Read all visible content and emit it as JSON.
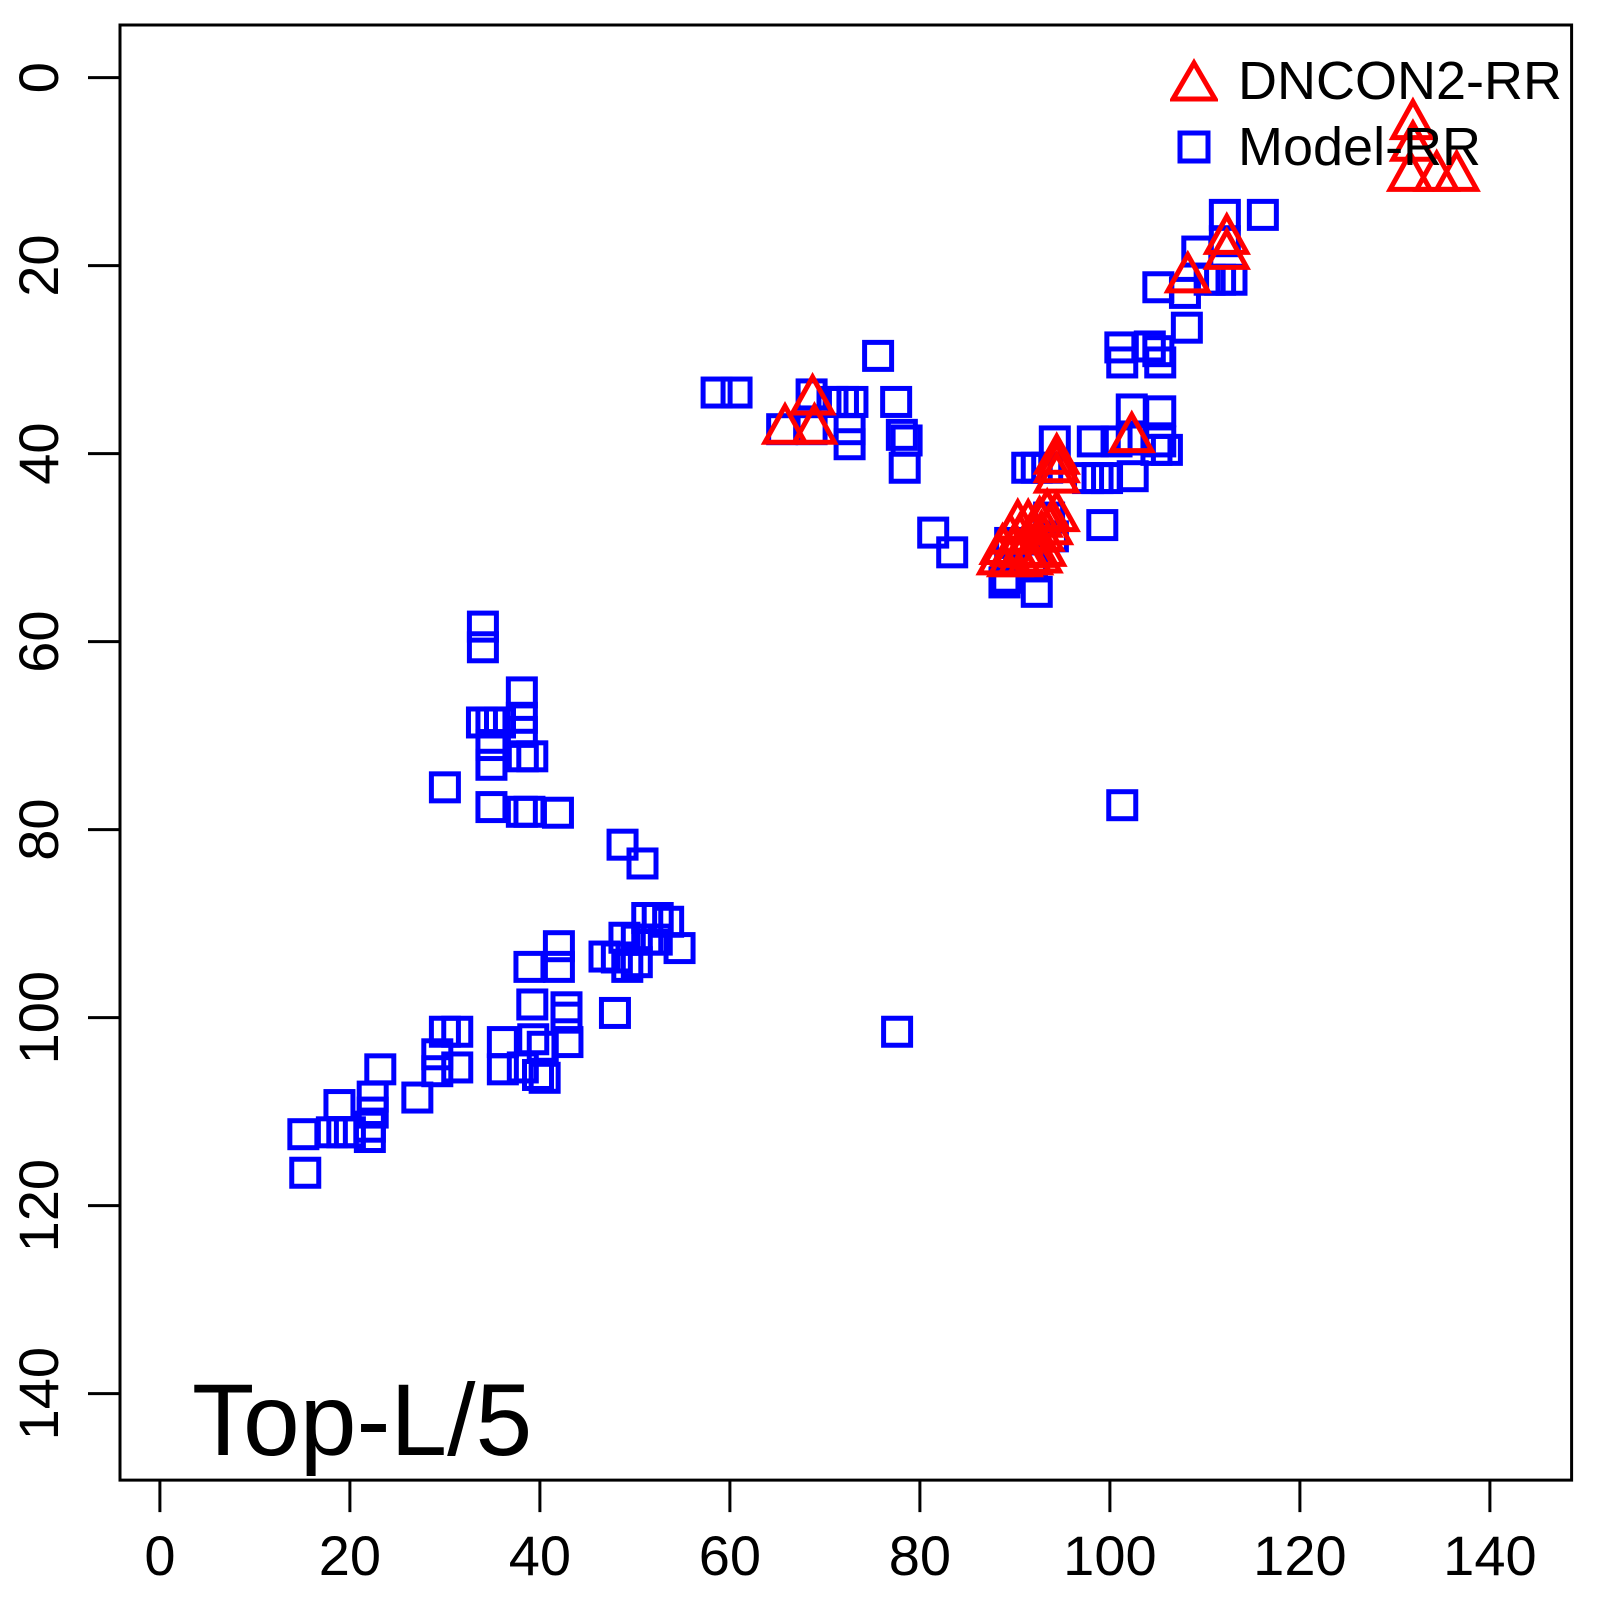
{
  "chart_data": {
    "type": "scatter",
    "title": "Top-L/5",
    "background": "#FFFFFF",
    "axes": {
      "x_ticks": [
        0,
        20,
        40,
        60,
        80,
        100,
        120,
        140
      ],
      "y_ticks": [
        0,
        20,
        40,
        60,
        80,
        100,
        120,
        140
      ],
      "x_range": [
        -4.2,
        148.6
      ],
      "y_range": [
        -5.6,
        149.2
      ],
      "y_reversed": true,
      "grid": false,
      "axis_color": "#000000"
    },
    "legend": {
      "position": "top-right",
      "items": [
        {
          "label": "DNCON2-RR",
          "marker": "triangle",
          "color": "#FF0000"
        },
        {
          "label": "Model-RR",
          "marker": "square",
          "color": "#0000FF"
        }
      ]
    },
    "series": [
      {
        "name": "DNCON2-RR",
        "marker": "triangle",
        "color": "#FF0000",
        "points": [
          [
            131.9,
            5.0
          ],
          [
            131.9,
            7.3
          ],
          [
            131.6,
            10.5
          ],
          [
            134.4,
            10.5
          ],
          [
            136.5,
            10.5
          ],
          [
            112.3,
            17.2
          ],
          [
            112.3,
            18.8
          ],
          [
            108.2,
            21.3
          ],
          [
            68.7,
            34.3
          ],
          [
            65.8,
            37.4
          ],
          [
            68.9,
            37.4
          ],
          [
            102.3,
            38.3
          ],
          [
            94.4,
            40.6
          ],
          [
            94.4,
            41.5
          ],
          [
            94.4,
            42.6
          ],
          [
            94.4,
            46.7
          ],
          [
            93.4,
            46.5
          ],
          [
            92.6,
            47.3
          ],
          [
            93.7,
            48.1
          ],
          [
            91.4,
            47.6
          ],
          [
            90.3,
            47.6
          ],
          [
            92.8,
            48.8
          ],
          [
            91.8,
            48.9
          ],
          [
            90.5,
            49.1
          ],
          [
            89.5,
            49.1
          ],
          [
            93.0,
            50.4
          ],
          [
            91.9,
            50.5
          ],
          [
            90.8,
            50.5
          ],
          [
            89.8,
            50.4
          ],
          [
            88.7,
            50.2
          ],
          [
            92.6,
            51.1
          ],
          [
            91.6,
            51.3
          ],
          [
            90.5,
            51.5
          ],
          [
            89.5,
            51.5
          ],
          [
            88.4,
            51.3
          ]
        ]
      },
      {
        "name": "Model-RR",
        "marker": "square",
        "color": "#0000FF",
        "points": [
          [
            112.1,
            14.6
          ],
          [
            116.1,
            14.6
          ],
          [
            109.2,
            18.5
          ],
          [
            112.1,
            17.4
          ],
          [
            110.5,
            21.5
          ],
          [
            111.6,
            21.5
          ],
          [
            112.8,
            21.5
          ],
          [
            105.1,
            22.3
          ],
          [
            107.9,
            22.9
          ],
          [
            108.1,
            26.6
          ],
          [
            101.1,
            28.7
          ],
          [
            101.3,
            30.3
          ],
          [
            104.2,
            28.6
          ],
          [
            105.1,
            29.1
          ],
          [
            105.3,
            30.3
          ],
          [
            102.3,
            35.3
          ],
          [
            105.3,
            35.5
          ],
          [
            94.2,
            38.7
          ],
          [
            98.2,
            38.7
          ],
          [
            100.7,
            38.7
          ],
          [
            102.3,
            38.5
          ],
          [
            105.3,
            38.7
          ],
          [
            104.9,
            39.6
          ],
          [
            106.0,
            39.6
          ],
          [
            91.3,
            41.5
          ],
          [
            92.3,
            41.5
          ],
          [
            93.4,
            41.5
          ],
          [
            97.7,
            42.6
          ],
          [
            98.7,
            42.6
          ],
          [
            99.7,
            42.6
          ],
          [
            102.4,
            42.4
          ],
          [
            99.2,
            47.6
          ],
          [
            75.6,
            29.6
          ],
          [
            58.6,
            33.5
          ],
          [
            60.7,
            33.5
          ],
          [
            68.6,
            33.7
          ],
          [
            70.8,
            34.5
          ],
          [
            71.9,
            34.5
          ],
          [
            72.9,
            34.5
          ],
          [
            77.5,
            34.5
          ],
          [
            65.5,
            37.4
          ],
          [
            68.6,
            37.4
          ],
          [
            72.6,
            37.4
          ],
          [
            72.6,
            39.0
          ],
          [
            78.1,
            38.0
          ],
          [
            78.6,
            38.6
          ],
          [
            78.4,
            41.5
          ],
          [
            81.4,
            48.4
          ],
          [
            83.4,
            50.5
          ],
          [
            93.6,
            46.8
          ],
          [
            94.0,
            48.8
          ],
          [
            89.5,
            49.5
          ],
          [
            89.2,
            53.2
          ],
          [
            91.8,
            52.0
          ],
          [
            88.9,
            53.7
          ],
          [
            92.3,
            54.7
          ],
          [
            101.3,
            77.4
          ],
          [
            77.6,
            101.5
          ],
          [
            34.0,
            58.4
          ],
          [
            34.0,
            60.6
          ],
          [
            38.1,
            65.4
          ],
          [
            33.9,
            68.6
          ],
          [
            34.9,
            68.6
          ],
          [
            35.8,
            68.6
          ],
          [
            38.1,
            68.1
          ],
          [
            38.1,
            69.6
          ],
          [
            34.9,
            71.0
          ],
          [
            34.9,
            73.1
          ],
          [
            38.2,
            72.2
          ],
          [
            39.2,
            72.2
          ],
          [
            30.0,
            75.5
          ],
          [
            34.9,
            77.6
          ],
          [
            38.1,
            78.1
          ],
          [
            38.9,
            78.1
          ],
          [
            41.9,
            78.2
          ],
          [
            48.7,
            81.6
          ],
          [
            50.8,
            83.6
          ],
          [
            51.3,
            89.4
          ],
          [
            52.4,
            89.4
          ],
          [
            53.5,
            89.8
          ],
          [
            48.9,
            91.5
          ],
          [
            50.2,
            91.7
          ],
          [
            51.3,
            91.7
          ],
          [
            52.3,
            91.7
          ],
          [
            54.7,
            92.6
          ],
          [
            46.8,
            93.5
          ],
          [
            48.1,
            93.6
          ],
          [
            49.2,
            94.6
          ],
          [
            50.2,
            94.1
          ],
          [
            42.0,
            92.4
          ],
          [
            42.0,
            94.6
          ],
          [
            38.9,
            94.6
          ],
          [
            39.2,
            98.6
          ],
          [
            42.8,
            98.9
          ],
          [
            42.8,
            100.0
          ],
          [
            47.9,
            99.5
          ],
          [
            30.0,
            101.5
          ],
          [
            31.3,
            101.5
          ],
          [
            36.1,
            102.6
          ],
          [
            39.3,
            102.3
          ],
          [
            40.3,
            103.1
          ],
          [
            42.9,
            102.6
          ],
          [
            29.2,
            103.9
          ],
          [
            29.2,
            105.7
          ],
          [
            31.3,
            105.3
          ],
          [
            36.1,
            105.5
          ],
          [
            38.2,
            105.3
          ],
          [
            39.8,
            106.1
          ],
          [
            40.5,
            106.4
          ],
          [
            23.2,
            105.5
          ],
          [
            27.1,
            108.5
          ],
          [
            18.9,
            109.3
          ],
          [
            22.4,
            108.4
          ],
          [
            22.4,
            110.1
          ],
          [
            22.1,
            111.6
          ],
          [
            22.1,
            112.7
          ],
          [
            15.1,
            112.4
          ],
          [
            18.1,
            112.2
          ],
          [
            19.2,
            112.2
          ],
          [
            20.0,
            112.2
          ],
          [
            15.3,
            116.5
          ]
        ]
      }
    ]
  }
}
